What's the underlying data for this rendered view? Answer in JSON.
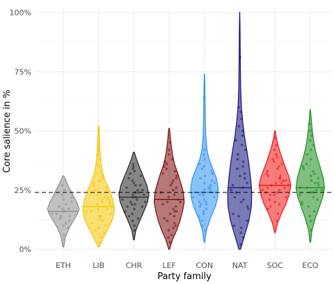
{
  "chart_data": {
    "type": "violin",
    "xlabel": "Party family",
    "ylabel": "Core salience in %",
    "ylim": [
      0,
      100
    ],
    "yticks": [
      0,
      25,
      50,
      75,
      100
    ],
    "ytick_labels": [
      "0%",
      "25%",
      "50%",
      "75%",
      "100%"
    ],
    "grid": true,
    "legend": "none",
    "reference_line": {
      "value": 24,
      "style": "dashed"
    },
    "categories": [
      "ETH",
      "LIB",
      "CHR",
      "LEF",
      "CON",
      "NAT",
      "SOC",
      "ECO"
    ],
    "colors": {
      "ETH": "#8c8c8c",
      "LIB": "#f5c400",
      "CHR": "#222222",
      "LEF": "#7a0a0a",
      "CON": "#2b8ff0",
      "NAT": "#0e0e7a",
      "SOC": "#f01010",
      "ECO": "#198a19"
    },
    "series": [
      {
        "category": "ETH",
        "min": 1,
        "max": 31,
        "median": 16,
        "density": [
          [
            1,
            0.03
          ],
          [
            5,
            0.12
          ],
          [
            9,
            0.35
          ],
          [
            12,
            0.6
          ],
          [
            15,
            0.85
          ],
          [
            17,
            0.95
          ],
          [
            20,
            0.8
          ],
          [
            24,
            0.5
          ],
          [
            27,
            0.28
          ],
          [
            31,
            0.03
          ]
        ],
        "points": [
          6,
          9,
          10,
          11,
          12,
          13,
          14,
          14,
          15,
          15,
          16,
          16,
          17,
          17,
          18,
          19,
          20,
          21,
          22,
          23,
          25,
          27
        ]
      },
      {
        "category": "LIB",
        "min": 1,
        "max": 52,
        "median": 18,
        "density": [
          [
            1,
            0.03
          ],
          [
            5,
            0.3
          ],
          [
            9,
            0.6
          ],
          [
            13,
            0.85
          ],
          [
            17,
            0.95
          ],
          [
            21,
            0.85
          ],
          [
            25,
            0.65
          ],
          [
            29,
            0.4
          ],
          [
            33,
            0.22
          ],
          [
            38,
            0.12
          ],
          [
            42,
            0.08
          ],
          [
            47,
            0.05
          ],
          [
            52,
            0.02
          ]
        ],
        "points": [
          3,
          5,
          7,
          8,
          9,
          10,
          11,
          12,
          13,
          14,
          14,
          15,
          16,
          16,
          17,
          17,
          18,
          18,
          19,
          19,
          20,
          20,
          21,
          21,
          22,
          22,
          23,
          24,
          24,
          25,
          26,
          27,
          28,
          29,
          30,
          31,
          32,
          33,
          35,
          36,
          38,
          40,
          42,
          44,
          45
        ]
      },
      {
        "category": "CHR",
        "min": 4,
        "max": 41,
        "median": 22,
        "density": [
          [
            4,
            0.02
          ],
          [
            8,
            0.12
          ],
          [
            12,
            0.35
          ],
          [
            16,
            0.6
          ],
          [
            20,
            0.82
          ],
          [
            23,
            0.9
          ],
          [
            27,
            0.78
          ],
          [
            31,
            0.55
          ],
          [
            35,
            0.32
          ],
          [
            38,
            0.16
          ],
          [
            41,
            0.03
          ]
        ],
        "points": [
          8,
          10,
          12,
          13,
          14,
          15,
          16,
          17,
          18,
          18,
          19,
          19,
          20,
          20,
          21,
          21,
          22,
          22,
          23,
          23,
          24,
          24,
          25,
          25,
          26,
          27,
          27,
          28,
          29,
          30,
          31,
          32,
          33,
          34,
          35,
          36
        ]
      },
      {
        "category": "LEF",
        "min": 0,
        "max": 51,
        "median": 21,
        "density": [
          [
            0,
            0.02
          ],
          [
            4,
            0.2
          ],
          [
            8,
            0.45
          ],
          [
            12,
            0.65
          ],
          [
            16,
            0.8
          ],
          [
            20,
            0.9
          ],
          [
            24,
            0.85
          ],
          [
            28,
            0.7
          ],
          [
            32,
            0.52
          ],
          [
            36,
            0.32
          ],
          [
            40,
            0.2
          ],
          [
            45,
            0.1
          ],
          [
            51,
            0.02
          ]
        ],
        "points": [
          3,
          5,
          6,
          8,
          9,
          10,
          11,
          12,
          13,
          14,
          15,
          16,
          16,
          17,
          18,
          19,
          20,
          20,
          21,
          22,
          23,
          24,
          25,
          26,
          27,
          28,
          29,
          30,
          31,
          32,
          33,
          34,
          35,
          36,
          37,
          38,
          40,
          42,
          45
        ]
      },
      {
        "category": "CON",
        "min": 3,
        "max": 74,
        "median": 24,
        "density": [
          [
            3,
            0.02
          ],
          [
            8,
            0.12
          ],
          [
            13,
            0.35
          ],
          [
            18,
            0.65
          ],
          [
            22,
            0.8
          ],
          [
            26,
            0.82
          ],
          [
            30,
            0.72
          ],
          [
            34,
            0.5
          ],
          [
            38,
            0.28
          ],
          [
            42,
            0.15
          ],
          [
            48,
            0.08
          ],
          [
            55,
            0.05
          ],
          [
            62,
            0.04
          ],
          [
            68,
            0.03
          ],
          [
            74,
            0.01
          ]
        ],
        "points": [
          8,
          10,
          12,
          14,
          15,
          16,
          17,
          18,
          19,
          19,
          20,
          20,
          21,
          22,
          22,
          23,
          23,
          24,
          24,
          25,
          25,
          26,
          26,
          27,
          28,
          28,
          29,
          30,
          31,
          32,
          33,
          34,
          35,
          36,
          38,
          40,
          42,
          64
        ]
      },
      {
        "category": "NAT",
        "min": 0,
        "max": 100,
        "median": 26,
        "density": [
          [
            0,
            0.05
          ],
          [
            6,
            0.3
          ],
          [
            12,
            0.55
          ],
          [
            18,
            0.7
          ],
          [
            24,
            0.72
          ],
          [
            30,
            0.65
          ],
          [
            36,
            0.55
          ],
          [
            42,
            0.42
          ],
          [
            48,
            0.28
          ],
          [
            54,
            0.18
          ],
          [
            60,
            0.1
          ],
          [
            68,
            0.06
          ],
          [
            76,
            0.04
          ],
          [
            84,
            0.03
          ],
          [
            92,
            0.02
          ],
          [
            100,
            0.005
          ]
        ],
        "points": [
          2,
          5,
          7,
          9,
          10,
          12,
          14,
          15,
          17,
          18,
          20,
          21,
          22,
          24,
          25,
          26,
          27,
          28,
          30,
          31,
          32,
          34,
          35,
          37,
          38,
          40,
          42,
          44,
          46,
          48,
          50,
          52,
          55,
          58,
          60,
          81
        ]
      },
      {
        "category": "SOC",
        "min": 7,
        "max": 50,
        "median": 27,
        "density": [
          [
            7,
            0.02
          ],
          [
            11,
            0.15
          ],
          [
            15,
            0.38
          ],
          [
            19,
            0.65
          ],
          [
            23,
            0.85
          ],
          [
            27,
            0.95
          ],
          [
            31,
            0.82
          ],
          [
            35,
            0.6
          ],
          [
            39,
            0.4
          ],
          [
            43,
            0.22
          ],
          [
            47,
            0.08
          ],
          [
            50,
            0.02
          ]
        ],
        "points": [
          12,
          15,
          17,
          18,
          19,
          20,
          21,
          22,
          23,
          23,
          24,
          24,
          25,
          25,
          26,
          26,
          27,
          27,
          28,
          28,
          29,
          29,
          30,
          30,
          31,
          31,
          32,
          33,
          34,
          35,
          36,
          37,
          38,
          39,
          40,
          42,
          44,
          47
        ]
      },
      {
        "category": "ECO",
        "min": 3,
        "max": 59,
        "median": 26,
        "density": [
          [
            3,
            0.02
          ],
          [
            8,
            0.1
          ],
          [
            13,
            0.3
          ],
          [
            18,
            0.55
          ],
          [
            22,
            0.75
          ],
          [
            26,
            0.85
          ],
          [
            30,
            0.78
          ],
          [
            34,
            0.62
          ],
          [
            38,
            0.45
          ],
          [
            42,
            0.3
          ],
          [
            46,
            0.2
          ],
          [
            50,
            0.12
          ],
          [
            55,
            0.06
          ],
          [
            59,
            0.01
          ]
        ],
        "points": [
          8,
          12,
          14,
          16,
          18,
          19,
          20,
          21,
          22,
          23,
          24,
          24,
          25,
          25,
          26,
          26,
          27,
          28,
          28,
          29,
          30,
          31,
          32,
          33,
          34,
          35,
          36,
          38,
          40,
          42,
          44,
          46,
          48,
          50,
          53
        ]
      }
    ]
  }
}
